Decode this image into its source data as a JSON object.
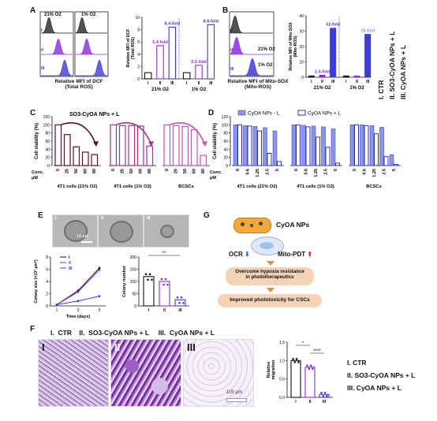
{
  "panels": {
    "A": {
      "label": "A",
      "hist_cond_left": "21% O2",
      "hist_cond_right": "1% O2",
      "row_labels": [
        "I",
        "II",
        "III"
      ],
      "hist_caption": "Relative  MFI of DCF\n(Total ROS)",
      "bar_ylabel": "Relative MFI of DCF\n(Total ROS)",
      "fold_labels": [
        "5.4-fold",
        "8.4-fold",
        "2.2-fold",
        "8.8-fold"
      ],
      "group_labels": [
        "21% O2",
        "1% O2"
      ],
      "tick_labels": [
        "I",
        "II",
        "III",
        "I",
        "II",
        "III"
      ]
    },
    "B": {
      "label": "B",
      "hist_caption": "Relative  MFI of Mito-SOX\n(Mito-ROS)",
      "row_labels": [
        "I",
        "II",
        "III"
      ],
      "cond_labels": [
        "21% O2",
        "1% O2"
      ],
      "bar_ylabel": "Relative MFI of Mito-SOX\n(Mito-ROS)",
      "fold_labels": [
        "1.4-fold",
        "32-fold",
        "28-fold"
      ],
      "group_labels": [
        "21% O2",
        "1% O2"
      ],
      "tick_labels": [
        "I",
        "II",
        "III",
        "I",
        "II",
        "III"
      ],
      "legend": [
        "I.  CTR",
        "II. SO3-CyOA NPs + L",
        "III. CyOA NPs + L"
      ]
    },
    "C": {
      "label": "C",
      "title": "SO3-CyOA NPs + L",
      "ylabel": "Cell viability (%)",
      "conc_label": "Conc.\nμM",
      "groups": [
        "4T1 cells (21% O2)",
        "4T1 cells (1% O2)",
        "BCSCs"
      ]
    },
    "D": {
      "label": "D",
      "legend_a": "CyOA NPs - L",
      "legend_b": "CyOA NPs + L",
      "ylabel": "Cell viability (%)",
      "conc_label": "Conc.\nμM",
      "groups": [
        "4T1 cells (21% O2)",
        "4T1 cells (1% O2)",
        "BCSCs"
      ]
    },
    "E": {
      "label": "E",
      "scale_bar": "10 μm",
      "image_labels": [
        "I",
        "II",
        "III"
      ],
      "growth_ylabel": "Colony size (×10³ μm²)",
      "growth_xlabel": "Time (days)",
      "growth_legend": [
        "I",
        "II",
        "III"
      ],
      "count_ylabel": "Colony number",
      "sig": "**"
    },
    "G": {
      "label": "G",
      "np_label": "CyOA NPs",
      "ocr": "OCR",
      "mito": "Mito-PDT",
      "step1": "Overcome hypoxia resistance\nin phototherapeutics",
      "step2": "Improved phototoxicity for CSCs"
    },
    "F": {
      "label": "F",
      "header": "I.  CTR    II.  SO3-CyOA NPs + L     III.  CyOA NPs + L",
      "image_labels": [
        "I",
        "II",
        "III"
      ],
      "scale_bar": "100 μm",
      "ylabel": "Relative\nmigration",
      "sig": [
        "*",
        "****"
      ],
      "legend": [
        "I.  CTR",
        "II.  SO3-CyOA NPs + L",
        "III.  CyOA NPs + L"
      ]
    }
  },
  "chart_data": [
    {
      "panel": "A",
      "type": "bar",
      "categories": [
        "I",
        "II",
        "III",
        "I",
        "II",
        "III"
      ],
      "values": [
        1.0,
        5.4,
        8.4,
        1.0,
        2.2,
        8.8
      ],
      "ylim": [
        0,
        10
      ],
      "ylabel": "Relative MFI of DCF (Total ROS)"
    },
    {
      "panel": "B",
      "type": "bar",
      "categories": [
        "I",
        "II",
        "III",
        "I",
        "II",
        "III"
      ],
      "values": [
        1.0,
        1.4,
        32,
        1.0,
        1.0,
        28
      ],
      "ylim": [
        0,
        40
      ],
      "ylabel": "Relative MFI of Mito-SOX (Mito-ROS)"
    },
    {
      "panel": "C",
      "type": "bar",
      "categories": [
        "0",
        "25",
        "50",
        "60",
        "80"
      ],
      "series": [
        {
          "name": "4T1 cells (21% O2)",
          "values": [
            100,
            76,
            46,
            33,
            27
          ]
        },
        {
          "name": "4T1 cells (1% O2)",
          "values": [
            100,
            98,
            98,
            97,
            48
          ]
        },
        {
          "name": "BCSCs",
          "values": [
            100,
            98,
            96,
            88,
            25
          ]
        }
      ],
      "ylim": [
        0,
        120
      ],
      "ylabel": "Cell viability (%)"
    },
    {
      "panel": "D",
      "type": "bar",
      "categories": [
        "0",
        "0.6",
        "1.25",
        "2.5",
        "5"
      ],
      "series": [
        {
          "name": "CyOA NPs - L (21% O2)",
          "values": [
            100,
            98,
            96,
            93,
            85
          ]
        },
        {
          "name": "CyOA NPs + L (21% O2)",
          "values": [
            100,
            97,
            85,
            30,
            10
          ]
        },
        {
          "name": "CyOA NPs - L (1% O2)",
          "values": [
            100,
            99,
            97,
            95,
            90
          ]
        },
        {
          "name": "CyOA NPs + L (1% O2)",
          "values": [
            100,
            95,
            70,
            45,
            6
          ]
        },
        {
          "name": "CyOA NPs - L (BCSCs)",
          "values": [
            100,
            100,
            98,
            94,
            27
          ]
        },
        {
          "name": "CyOA NPs + L (BCSCs)",
          "values": [
            100,
            98,
            78,
            22,
            3
          ]
        }
      ],
      "ylim": [
        0,
        120
      ],
      "ylabel": "Cell viability (%)"
    },
    {
      "panel": "E-growth",
      "type": "line",
      "x": [
        1,
        3,
        5
      ],
      "series": [
        {
          "name": "I",
          "values": [
            0.2,
            2.5,
            6.2
          ]
        },
        {
          "name": "II",
          "values": [
            0.2,
            2.3,
            5.9
          ]
        },
        {
          "name": "III",
          "values": [
            0.2,
            0.8,
            1.6
          ]
        }
      ],
      "ylim": [
        0,
        8
      ],
      "xlabel": "Time (days)",
      "ylabel": "Colony size (×10³ μm²)"
    },
    {
      "panel": "E-count",
      "type": "bar",
      "categories": [
        "I",
        "II",
        "III"
      ],
      "values": [
        120,
        100,
        25
      ],
      "ylim": [
        0,
        200
      ],
      "ylabel": "Colony number"
    },
    {
      "panel": "F",
      "type": "bar",
      "categories": [
        "I",
        "II",
        "III"
      ],
      "values": [
        1.0,
        0.82,
        0.08
      ],
      "ylim": [
        0,
        1.5
      ],
      "ylabel": "Relative migration"
    }
  ],
  "colors": {
    "ctrl": "#111111",
    "so3": "#8a2be2",
    "cyoa": "#3b3bd6",
    "darkmaroon": "#5c0f2a",
    "magenta": "#a0338f",
    "pink": "#c056b2",
    "dblue": "#2b2fbf",
    "lblue": "#8c96e6",
    "orange": "#f6d2b6",
    "purple_stain": "#7b2fa0"
  }
}
